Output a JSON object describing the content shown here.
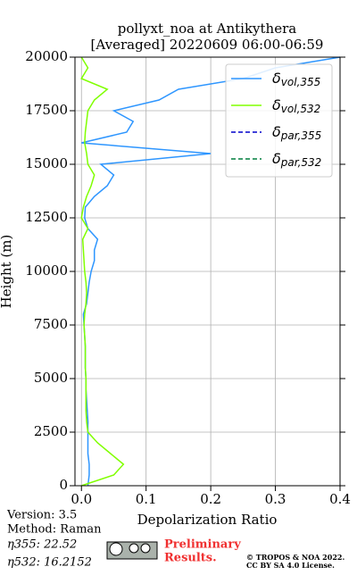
{
  "chart_data": {
    "type": "profile",
    "title": "pollyxt_noa at Antikythera",
    "subtitle": "[Averaged] 20220609 06:00-06:59",
    "xlabel": "Depolarization Ratio",
    "ylabel": "Height (m)",
    "xlim": [
      -0.01,
      0.4
    ],
    "ylim": [
      0,
      20000
    ],
    "xticks": [
      {
        "value": 0,
        "label": "0.0"
      },
      0.1,
      0.2,
      0.3,
      0.4
    ],
    "yticks": [
      0,
      2500,
      5000,
      7500,
      10000,
      12500,
      15000,
      17500,
      20000
    ],
    "grid": true,
    "legend": "upper right",
    "heights": [
      0,
      500,
      1000,
      1500,
      2000,
      2500,
      3000,
      3500,
      4000,
      4500,
      5000,
      5500,
      6000,
      6500,
      7000,
      7500,
      8000,
      8500,
      9000,
      9500,
      10000,
      10500,
      11000,
      11500,
      12000,
      12500,
      13000,
      13500,
      14000,
      14500,
      15000,
      15500,
      16000,
      16500,
      17000,
      17500,
      18000,
      18500,
      19000,
      19500,
      20000
    ],
    "series": [
      {
        "name": "δvol,355",
        "color": "#2e96ff",
        "linestyle": "solid",
        "values": [
          0.01,
          0.012,
          0.012,
          0.01,
          0.01,
          0.01,
          0.01,
          0.009,
          0.008,
          0.007,
          0.007,
          0.006,
          0.006,
          0.006,
          0.005,
          0.004,
          0.003,
          0.008,
          0.01,
          0.012,
          0.015,
          0.02,
          0.02,
          0.025,
          0.01,
          0.005,
          0.006,
          0.02,
          0.04,
          0.05,
          0.03,
          0.2,
          0.0,
          0.07,
          0.08,
          0.05,
          0.12,
          0.15,
          0.25,
          0.3,
          0.4
        ]
      },
      {
        "name": "δvol,532",
        "color": "#80ff00",
        "linestyle": "solid",
        "values": [
          0.0,
          0.05,
          0.065,
          0.045,
          0.025,
          0.01,
          0.008,
          0.007,
          0.007,
          0.007,
          0.007,
          0.006,
          0.006,
          0.006,
          0.005,
          0.004,
          0.005,
          0.007,
          0.008,
          0.007,
          0.005,
          0.004,
          0.003,
          0.002,
          0.01,
          0.0,
          0.003,
          0.008,
          0.015,
          0.02,
          0.01,
          0.008,
          0.005,
          0.006,
          0.008,
          0.01,
          0.02,
          0.04,
          0.0,
          0.01,
          0.0
        ]
      },
      {
        "name": "δpar,355",
        "color": "#0000cc",
        "linestyle": "dashed"
      },
      {
        "name": "δpar,532",
        "color": "#007f3f",
        "linestyle": "dashed"
      }
    ],
    "annotations": [
      "Version: 3.5",
      "Method: Raman",
      "η355:  22.52",
      "η532: 16.2152"
    ],
    "notice": [
      "Preliminary",
      "Results."
    ],
    "copyright": [
      "© TROPOS & NOA 2022.",
      "CC BY SA 4.0 License."
    ]
  }
}
